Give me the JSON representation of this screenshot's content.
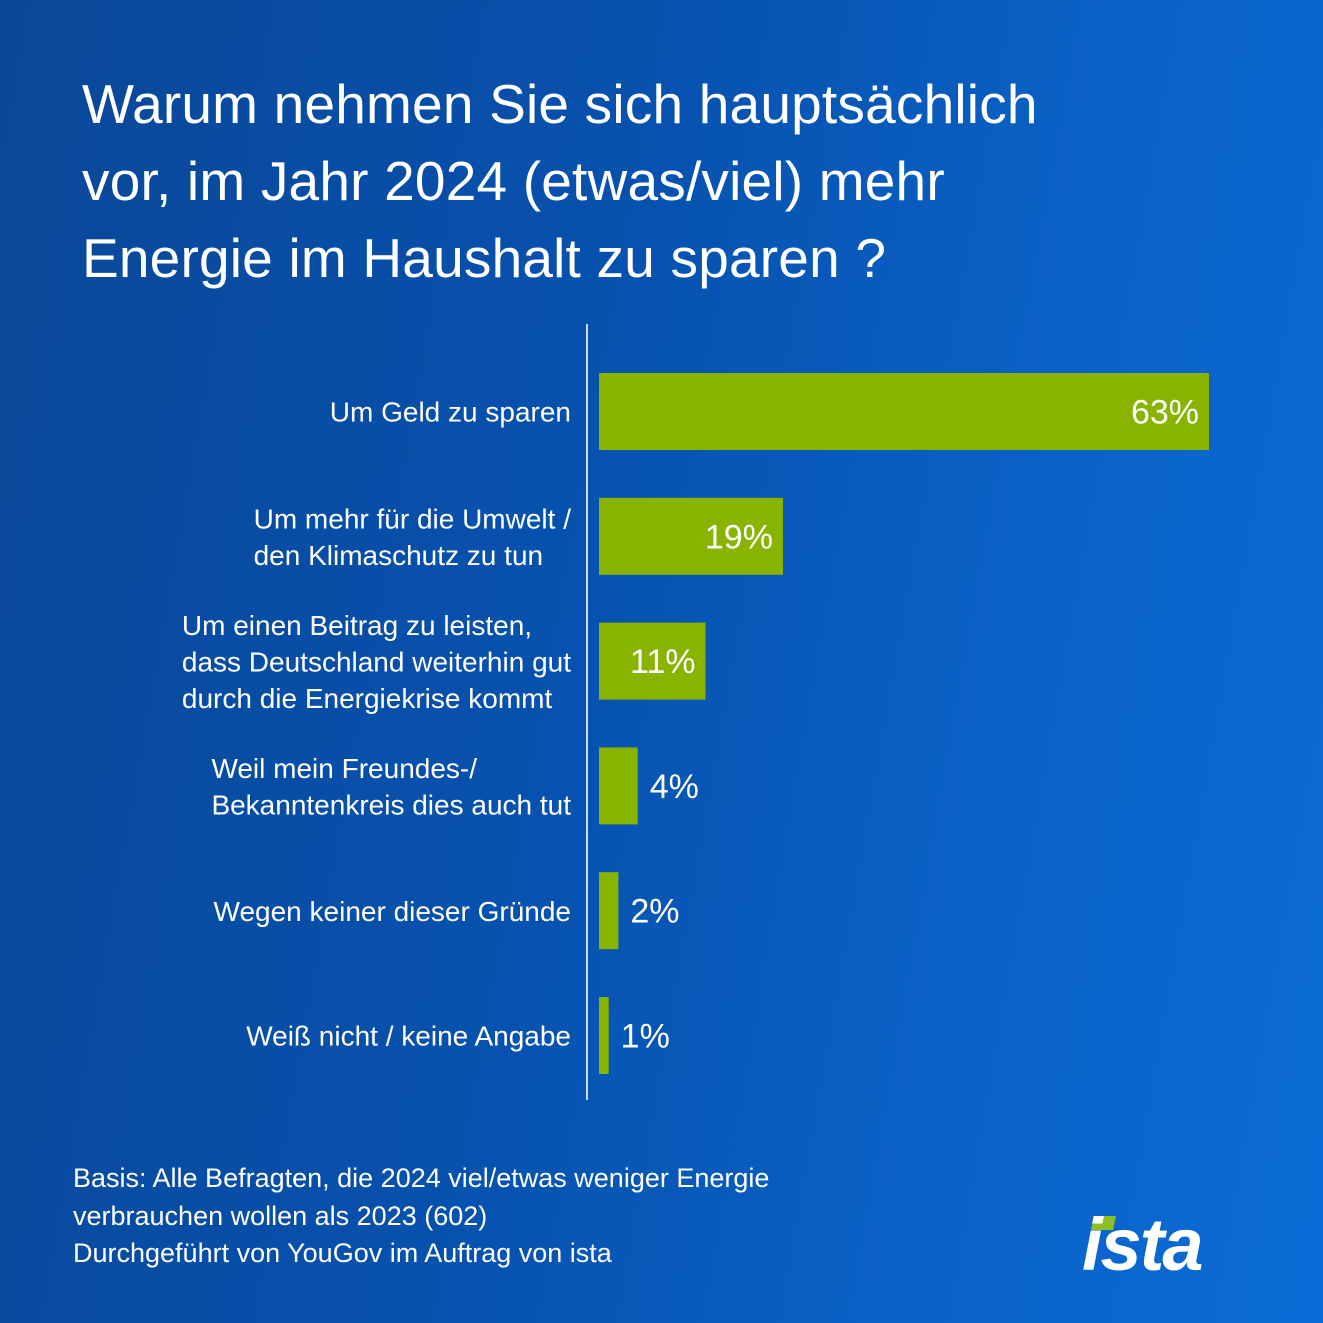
{
  "header": {
    "title_lines": [
      "Warum nehmen Sie sich hauptsächlich",
      "vor, im Jahr 2024 (etwas/viel) mehr",
      "Energie im Haushalt zu sparen ?"
    ]
  },
  "colors": {
    "bar": "#88b400",
    "text": "#ffffff",
    "axis": "#ffffff",
    "logo_accent": "#8cbf26"
  },
  "chart_data": {
    "type": "bar",
    "orientation": "horizontal",
    "title": "Warum nehmen Sie sich hauptsächlich vor, im Jahr 2024 (etwas/viel) mehr Energie im Haushalt zu sparen ?",
    "xlabel": "",
    "ylabel": "",
    "unit": "%",
    "xlim": [
      0,
      63
    ],
    "grid": false,
    "legend": "none",
    "categories": [
      [
        "Um Geld zu sparen"
      ],
      [
        "Um mehr für die Umwelt /",
        "den Klimaschutz zu tun"
      ],
      [
        "Um einen Beitrag zu leisten,",
        "dass Deutschland weiterhin gut",
        "durch die Energiekrise kommt"
      ],
      [
        "Weil mein Freundes-/",
        "Bekanntenkreis dies auch tut"
      ],
      [
        "Wegen keiner dieser Gründe"
      ],
      [
        "Weiß nicht / keine Angabe"
      ]
    ],
    "values": [
      63,
      19,
      11,
      4,
      2,
      1
    ],
    "data_labels": [
      "63%",
      "19%",
      "11%",
      "4%",
      "2%",
      "1%"
    ]
  },
  "footnote": {
    "lines": [
      "Basis: Alle Befragten, die 2024 viel/etwas weniger Energie",
      "verbrauchen wollen als 2023 (602)",
      "Durchgeführt von YouGov im Auftrag von ista"
    ]
  },
  "logo": {
    "text": "ista"
  }
}
